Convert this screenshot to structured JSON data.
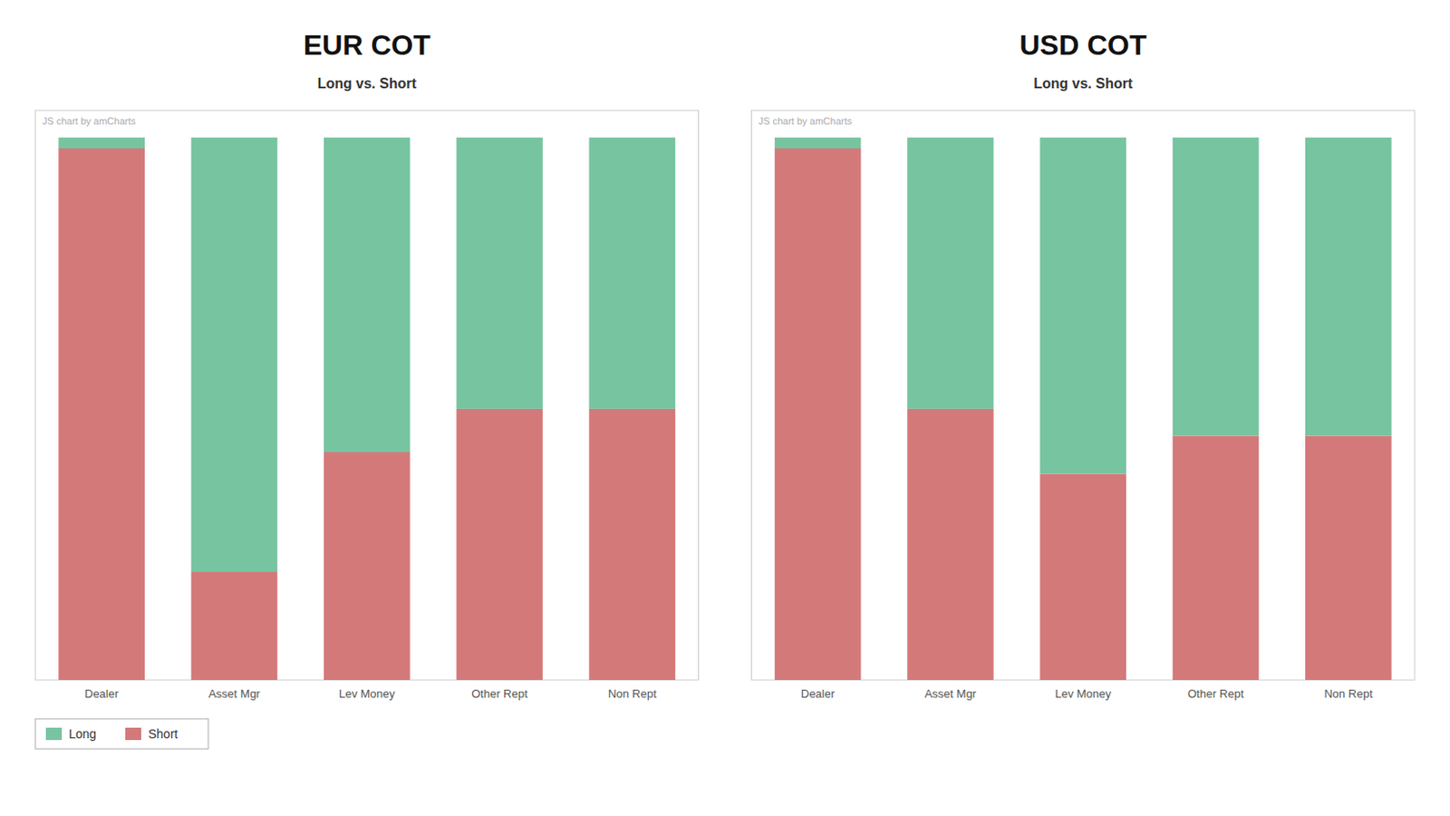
{
  "chart_data": [
    {
      "type": "bar",
      "stacked": true,
      "title": "EUR COT",
      "subtitle": "Long vs. Short",
      "annotations": [
        "JS chart by amCharts"
      ],
      "categories": [
        "Dealer",
        "Asset Mgr",
        "Lev Money",
        "Other Rept",
        "Non Rept"
      ],
      "series": [
        {
          "name": "Short",
          "color": "#d4797a",
          "values": [
            98,
            20,
            42,
            50,
            50
          ]
        },
        {
          "name": "Long",
          "color": "#77c4a0",
          "values": [
            2,
            80,
            58,
            50,
            50
          ]
        }
      ],
      "ylim": [
        0,
        105
      ],
      "yticks": [],
      "tick_labels": "x",
      "grid": false,
      "legend": "lower left"
    },
    {
      "type": "bar",
      "stacked": true,
      "title": "USD COT",
      "subtitle": "Long vs. Short",
      "annotations": [
        "JS chart by amCharts"
      ],
      "categories": [
        "Dealer",
        "Asset Mgr",
        "Lev Money",
        "Other Rept",
        "Non Rept"
      ],
      "series": [
        {
          "name": "Short",
          "color": "#d4797a",
          "values": [
            98,
            50,
            38,
            45,
            45
          ]
        },
        {
          "name": "Long",
          "color": "#77c4a0",
          "values": [
            2,
            50,
            62,
            55,
            55
          ]
        }
      ],
      "ylim": [
        0,
        105
      ],
      "yticks": [],
      "tick_labels": "x",
      "grid": false
    }
  ]
}
